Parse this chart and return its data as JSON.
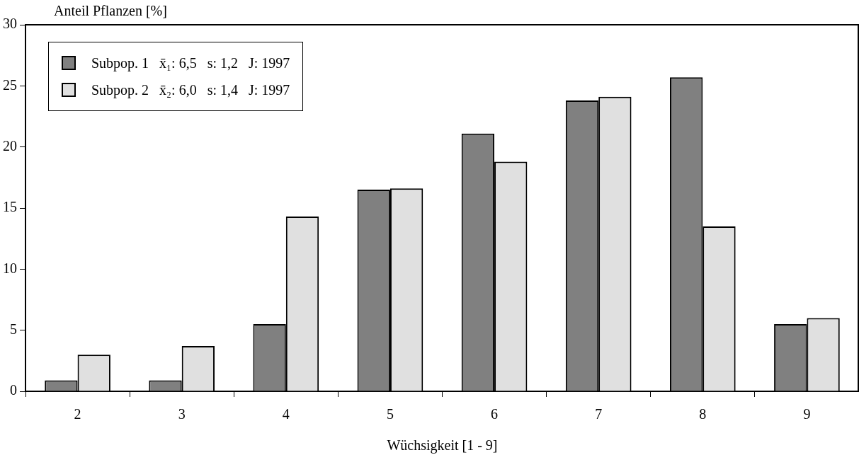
{
  "chart_data": {
    "type": "bar",
    "xlabel": "Wüchsigkeit [1 - 9]",
    "ylabel": "Anteil Pflanzen [%]",
    "categories": [
      "2",
      "3",
      "4",
      "5",
      "6",
      "7",
      "8",
      "9"
    ],
    "series": [
      {
        "name": "Subpop. 1   x̄₁: 6,5   s: 1,2   J: 1997",
        "color": "#808080",
        "values": [
          0.9,
          0.9,
          5.5,
          16.5,
          21.1,
          23.8,
          25.7,
          5.5
        ]
      },
      {
        "name": "Subpop. 2   x̄₂: 6,0   s: 1,4   J: 1997",
        "color": "#e0e0e0",
        "values": [
          3.0,
          3.7,
          14.3,
          16.6,
          18.8,
          24.1,
          13.5,
          6.0
        ]
      }
    ],
    "ylim": [
      0,
      30
    ],
    "yticks": [
      0,
      5,
      10,
      15,
      20,
      25,
      30
    ],
    "grid": false,
    "legend": "top left"
  }
}
